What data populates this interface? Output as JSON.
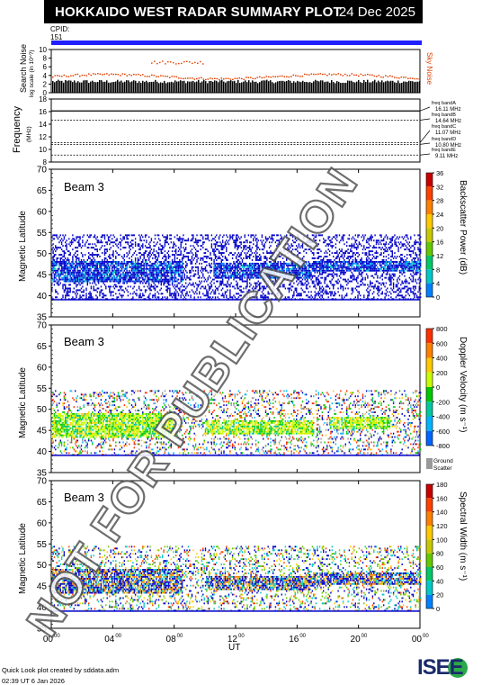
{
  "header": {
    "title": "HOKKAIDO WEST RADAR SUMMARY PLOT",
    "date": "24 Dec 2025",
    "cpid_label": "CPID:",
    "cpid_value": "151"
  },
  "noise_panel": {
    "ylabel": "Search Noise",
    "ylabel_units": "log scale (in 10^?)",
    "right_label": "Sky Noise",
    "yticks": [
      "10",
      "8",
      "6",
      "4",
      "2",
      "0"
    ]
  },
  "freq_panel": {
    "ylabel": "Frequency",
    "ylabel_units": "(MHz)",
    "yticks": [
      "18",
      "16",
      "14",
      "12",
      "10",
      "8"
    ],
    "bands": [
      {
        "name": "freq bandA",
        "value": "16.11 MHz"
      },
      {
        "name": "freq bandB",
        "value": "14.64 MHz"
      },
      {
        "name": "freq bandC",
        "value": "11.07 MHz"
      },
      {
        "name": "freq bandD",
        "value": "10.80 MHz"
      },
      {
        "name": "freq bandE",
        "value": "9.11 MHz"
      }
    ]
  },
  "panels": [
    {
      "beam_label": "Beam  3",
      "ylabel": "Magnetic Latitude",
      "yticks": [
        "70",
        "65",
        "60",
        "55",
        "50",
        "45",
        "40",
        "35"
      ],
      "colorbar_label": "Backscatter Power (dB)",
      "colorbar_ticks": [
        "36",
        "32",
        "28",
        "24",
        "20",
        "16",
        "12",
        "8",
        "4",
        "0"
      ],
      "colors": [
        "#0000c8",
        "#0080ff",
        "#00c8c8",
        "#00c864",
        "#64c800",
        "#c8c800",
        "#ffc800",
        "#ff8000",
        "#ff4000",
        "#c80000"
      ]
    },
    {
      "beam_label": "Beam  3",
      "ylabel": "Magnetic Latitude",
      "yticks": [
        "70",
        "65",
        "60",
        "55",
        "50",
        "45",
        "40",
        "35"
      ],
      "colorbar_label": "Doppler Velocity (m s⁻¹)",
      "colorbar_ticks": [
        "800",
        "600",
        "400",
        "200",
        "0",
        "-200",
        "-400",
        "-600",
        "-800"
      ],
      "ground_scatter_label": "Ground Scatter",
      "colors": [
        "#0000c8",
        "#0064ff",
        "#00b4ff",
        "#00c8a0",
        "#00c800",
        "#c8ff00",
        "#ffc800",
        "#ff8000",
        "#ff3000"
      ]
    },
    {
      "beam_label": "Beam  3",
      "ylabel": "Magnetic Latitude",
      "yticks": [
        "70",
        "65",
        "60",
        "55",
        "50",
        "45",
        "40",
        "35"
      ],
      "colorbar_label": "Spectral Width (m s⁻¹)",
      "colorbar_ticks": [
        "180",
        "160",
        "140",
        "120",
        "100",
        "80",
        "60",
        "40",
        "20",
        "0"
      ],
      "colors": [
        "#0000c8",
        "#0080ff",
        "#00c8c8",
        "#00c864",
        "#64c800",
        "#c8c800",
        "#ffc800",
        "#ff8000",
        "#ff4000",
        "#c80000"
      ]
    }
  ],
  "x_axis": {
    "label": "UT",
    "ticks": [
      {
        "hour": "00",
        "minute": "00"
      },
      {
        "hour": "04",
        "minute": "00"
      },
      {
        "hour": "08",
        "minute": "00"
      },
      {
        "hour": "12",
        "minute": "00"
      },
      {
        "hour": "16",
        "minute": "00"
      },
      {
        "hour": "20",
        "minute": "00"
      },
      {
        "hour": "00",
        "minute": "00"
      }
    ]
  },
  "footer": {
    "line1": "Quick Look plot created by sddata.adm",
    "line2": "02:39 UT  6 Jan 2026",
    "logo": "ISEE"
  },
  "watermark": "NOT FOR PUBLICATION",
  "chart_data": {
    "type": "heatmap",
    "title": "HOKKAIDO WEST RADAR SUMMARY PLOT",
    "xlabel": "UT",
    "ylabel": "Magnetic Latitude",
    "xlim": [
      0,
      24
    ],
    "ylim": [
      35,
      70
    ],
    "series": [
      {
        "name": "Backscatter Power (dB)",
        "range": [
          0,
          36
        ],
        "approx_echo_bands": [
          {
            "ut_start": 0,
            "ut_end": 8.5,
            "lat_min": 43,
            "lat_max": 48,
            "value": 12
          },
          {
            "ut_start": 10.5,
            "ut_end": 17,
            "lat_min": 44,
            "lat_max": 47.5,
            "value": 10
          },
          {
            "ut_start": 17,
            "ut_end": 24,
            "lat_min": 45.5,
            "lat_max": 48,
            "value": 10
          }
        ]
      },
      {
        "name": "Doppler Velocity (m s⁻¹)",
        "range": [
          -800,
          800
        ],
        "approx_echo_bands": [
          {
            "ut_start": 0,
            "ut_end": 8,
            "lat_min": 43,
            "lat_max": 49,
            "value": -100
          },
          {
            "ut_start": 10,
            "ut_end": 17,
            "lat_min": 44,
            "lat_max": 47,
            "value": -250
          },
          {
            "ut_start": 18,
            "ut_end": 22,
            "lat_min": 45,
            "lat_max": 48,
            "value": -250
          }
        ]
      },
      {
        "name": "Spectral Width (m s⁻¹)",
        "range": [
          0,
          180
        ],
        "approx_echo_bands": [
          {
            "ut_start": 0,
            "ut_end": 8.5,
            "lat_min": 43,
            "lat_max": 49,
            "value": 30
          },
          {
            "ut_start": 10,
            "ut_end": 17,
            "lat_min": 44,
            "lat_max": 47,
            "value": 20
          },
          {
            "ut_start": 17,
            "ut_end": 24,
            "lat_min": 45,
            "lat_max": 48,
            "value": 40
          }
        ]
      }
    ],
    "frequencies_mhz": [
      16.11,
      14.64,
      11.07,
      10.8,
      9.11
    ],
    "grid": false
  }
}
